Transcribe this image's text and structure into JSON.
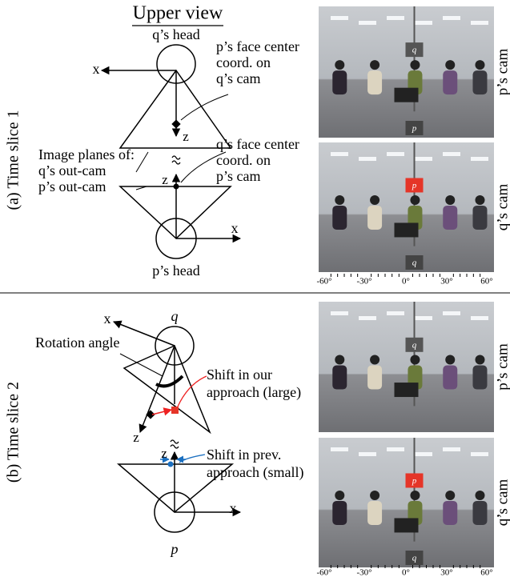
{
  "panel_a": {
    "side_label": "(a) Time slice 1",
    "title": "Upper view",
    "q_head": "q’s head",
    "p_head": "p’s head",
    "x_top": "x",
    "x_bottom": "x",
    "z_top": "z",
    "z_bottom": "z",
    "note_p_face": [
      "p’s face center",
      "coord. on",
      "q’s cam"
    ],
    "note_planes": [
      "Image planes of:",
      "q’s out-cam",
      "p’s out-cam"
    ],
    "note_q_face": [
      "q’s face center",
      "coord. on",
      "p’s cam"
    ],
    "photo_top": {
      "cam_label": "p’s cam",
      "tag": "q",
      "tag_bottom": "p"
    },
    "photo_bottom": {
      "cam_label": "q’s cam",
      "tag": "p",
      "tag_bottom": "q"
    },
    "angle_ticks": [
      "-60°",
      "-30°",
      "0°",
      "30°",
      "60°"
    ]
  },
  "panel_b": {
    "side_label": "(b) Time slice 2",
    "q_label": "q",
    "p_label": "p",
    "x_top": "x",
    "x_bottom": "x",
    "z_top": "z",
    "z_bottom": "z",
    "rotation": "Rotation angle",
    "note_large": [
      "Shift in our",
      "approach (large)"
    ],
    "note_small": [
      "Shift in prev.",
      "approach (small)"
    ],
    "photo_top": {
      "cam_label": "p’s cam",
      "tag": "q"
    },
    "photo_bottom": {
      "cam_label": "q’s cam",
      "tag": "p",
      "tag_bottom": "q"
    },
    "angle_ticks": [
      "-60°",
      "-30°",
      "0°",
      "30°",
      "60°"
    ]
  }
}
